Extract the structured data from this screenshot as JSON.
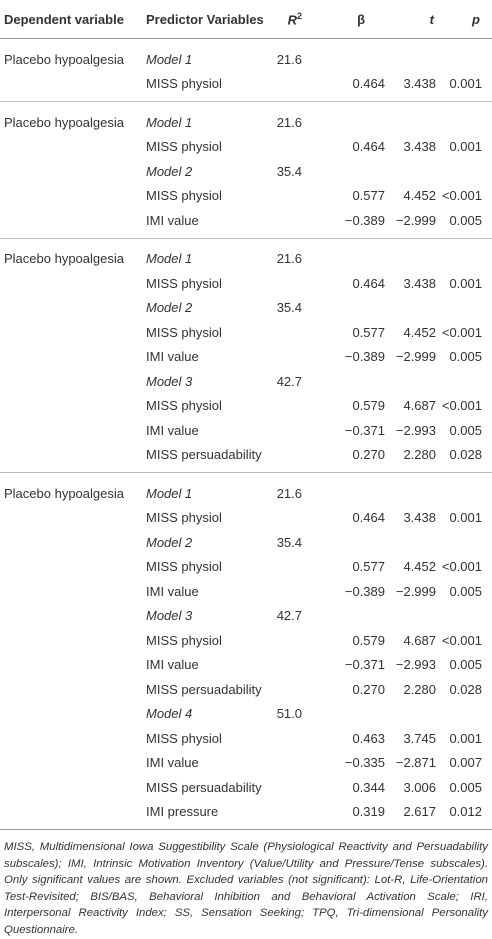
{
  "table": {
    "header": {
      "dependent": "Dependent variable",
      "predictor": "Predictor Variables",
      "r2": {
        "text": "R",
        "sup": "2"
      },
      "beta": "β",
      "t": "t",
      "p": "p"
    },
    "groups": [
      {
        "rows": [
          {
            "dependent": "Placebo hypoalgesia",
            "model": "Model 1",
            "r2": "21.6"
          },
          {
            "predictor": "MISS physiol",
            "beta": "0.464",
            "t": "3.438",
            "p": "0.001"
          }
        ]
      },
      {
        "rows": [
          {
            "dependent": "Placebo hypoalgesia",
            "model": "Model 1",
            "r2": "21.6"
          },
          {
            "predictor": "MISS physiol",
            "beta": "0.464",
            "t": "3.438",
            "p": "0.001"
          },
          {
            "model": "Model 2",
            "r2": "35.4"
          },
          {
            "predictor": "MISS physiol",
            "beta": "0.577",
            "t": "4.452",
            "p": "<0.001"
          },
          {
            "predictor": "IMI value",
            "beta": "−0.389",
            "t": "−2.999",
            "p": "0.005"
          }
        ]
      },
      {
        "rows": [
          {
            "dependent": "Placebo hypoalgesia",
            "model": "Model 1",
            "r2": "21.6"
          },
          {
            "predictor": "MISS physiol",
            "beta": "0.464",
            "t": "3.438",
            "p": "0.001"
          },
          {
            "model": "Model 2",
            "r2": "35.4"
          },
          {
            "predictor": "MISS physiol",
            "beta": "0.577",
            "t": "4.452",
            "p": "<0.001"
          },
          {
            "predictor": "IMI value",
            "beta": "−0.389",
            "t": "−2.999",
            "p": "0.005"
          },
          {
            "model": "Model 3",
            "r2": "42.7"
          },
          {
            "predictor": "MISS physiol",
            "beta": "0.579",
            "t": "4.687",
            "p": "<0.001"
          },
          {
            "predictor": "IMI value",
            "beta": "−0.371",
            "t": "−2.993",
            "p": "0.005"
          },
          {
            "predictor": "MISS persuadability",
            "beta": "0.270",
            "t": "2.280",
            "p": "0.028"
          }
        ]
      },
      {
        "rows": [
          {
            "dependent": "Placebo hypoalgesia",
            "model": "Model 1",
            "r2": "21.6"
          },
          {
            "predictor": "MISS physiol",
            "beta": "0.464",
            "t": "3.438",
            "p": "0.001"
          },
          {
            "model": "Model 2",
            "r2": "35.4"
          },
          {
            "predictor": "MISS physiol",
            "beta": "0.577",
            "t": "4.452",
            "p": "<0.001"
          },
          {
            "predictor": "IMI value",
            "beta": "−0.389",
            "t": "−2.999",
            "p": "0.005"
          },
          {
            "model": "Model 3",
            "r2": "42.7"
          },
          {
            "predictor": "MISS physiol",
            "beta": "0.579",
            "t": "4.687",
            "p": "<0.001"
          },
          {
            "predictor": "IMI value",
            "beta": "−0.371",
            "t": "−2.993",
            "p": "0.005"
          },
          {
            "predictor": "MISS persuadability",
            "beta": "0.270",
            "t": "2.280",
            "p": "0.028"
          },
          {
            "model": "Model 4",
            "r2": "51.0"
          },
          {
            "predictor": "MISS physiol",
            "beta": "0.463",
            "t": "3.745",
            "p": "0.001"
          },
          {
            "predictor": "IMI value",
            "beta": "−0.335",
            "t": "−2.871",
            "p": "0.007"
          },
          {
            "predictor": "MISS persuadability",
            "beta": "0.344",
            "t": "3.006",
            "p": "0.005"
          },
          {
            "predictor": "IMI pressure",
            "beta": "0.319",
            "t": "2.617",
            "p": "0.012"
          }
        ]
      }
    ],
    "footnote": "MISS, Multidimensional Iowa Suggestibility Scale (Physiological Reactivity and Persuadability subscales); IMI, Intrinsic Motivation Inventory (Value/Utility and Pressure/Tense subscales). Only significant values are shown. Excluded variables (not significant): Lot-R, Life-Orientation Test-Revisited; BIS/BAS, Behavioral Inhibition and Behavioral Activation Scale; IRI, Interpersonal Reactivity Index; SS, Sensation Seeking; TPQ, Tri-dimensional Personality Questionnaire."
  }
}
